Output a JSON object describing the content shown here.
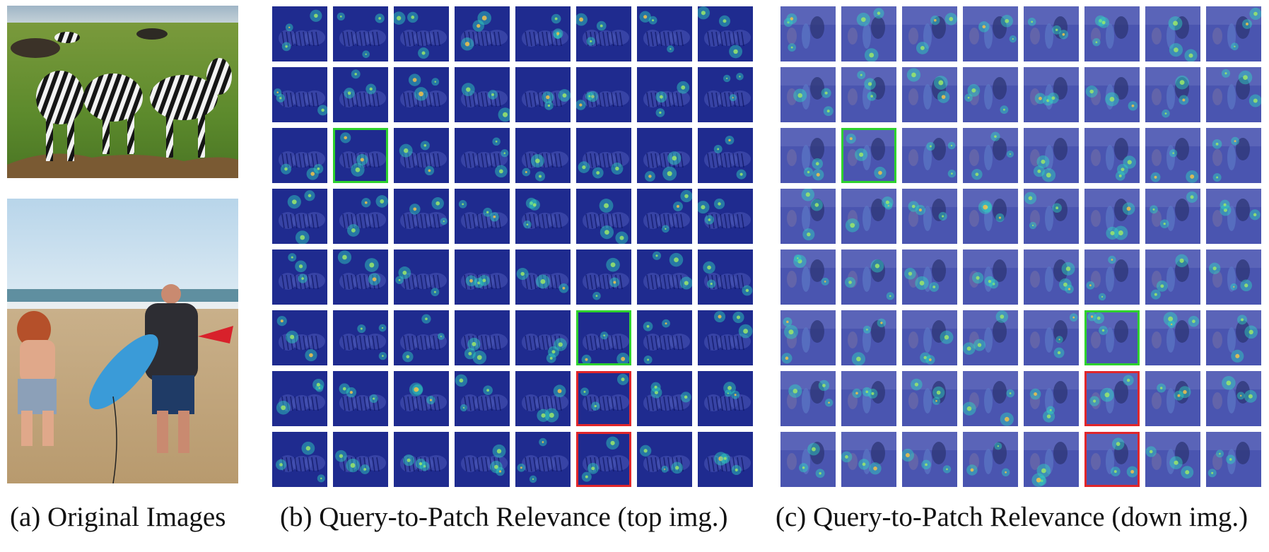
{
  "figure": {
    "panels": [
      {
        "id": "a",
        "caption": "(a) Original Images",
        "content": "zebras and beach photos"
      },
      {
        "id": "b",
        "caption": "(b) Query-to-Patch Relevance (top img.)",
        "rows": 8,
        "cols": 8,
        "highlight_green": [
          [
            2,
            1
          ],
          [
            5,
            5
          ]
        ],
        "highlight_red": [
          [
            6,
            5
          ],
          [
            7,
            5
          ]
        ]
      },
      {
        "id": "c",
        "caption": "(c) Query-to-Patch Relevance (down img.)",
        "rows": 8,
        "cols": 8,
        "highlight_green": [
          [
            2,
            1
          ],
          [
            5,
            5
          ]
        ],
        "highlight_red": [
          [
            6,
            5
          ],
          [
            7,
            5
          ]
        ]
      }
    ]
  },
  "colors": {
    "highlight_green": "#2ed12e",
    "highlight_red": "#e0262b",
    "heatmap_base_b": "#1f2b8f",
    "heatmap_base_c": "#4a55b0"
  }
}
